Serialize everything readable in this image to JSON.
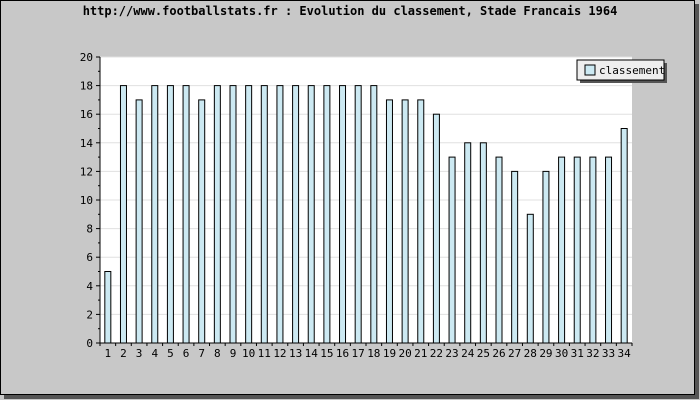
{
  "chart_data": {
    "type": "bar",
    "title": "http://www.footballstats.fr : Evolution du classement, Stade Francais 1964",
    "xlabel": "",
    "ylabel": "",
    "categories": [
      "1",
      "2",
      "3",
      "4",
      "5",
      "6",
      "7",
      "8",
      "9",
      "10",
      "11",
      "12",
      "13",
      "14",
      "15",
      "16",
      "17",
      "18",
      "19",
      "20",
      "21",
      "22",
      "23",
      "24",
      "25",
      "26",
      "27",
      "28",
      "29",
      "30",
      "31",
      "32",
      "33",
      "34"
    ],
    "series": [
      {
        "name": "classement",
        "values": [
          5,
          18,
          17,
          18,
          18,
          18,
          17,
          18,
          18,
          18,
          18,
          18,
          18,
          18,
          18,
          18,
          18,
          18,
          17,
          17,
          17,
          16,
          13,
          14,
          14,
          13,
          12,
          9,
          12,
          13,
          13,
          13,
          13,
          15
        ]
      }
    ],
    "ylim": [
      0,
      20
    ],
    "yticks": [
      0,
      2,
      4,
      6,
      8,
      10,
      12,
      14,
      16,
      18,
      20
    ],
    "grid": true,
    "legend_position": "top-right",
    "colors": {
      "background": "#c8c8c8",
      "plot_background": "#ffffff",
      "bar_fill": "#cce9f2",
      "bar_stroke": "#000000",
      "grid": "#e0e0e0",
      "shadow": "#555555"
    }
  }
}
